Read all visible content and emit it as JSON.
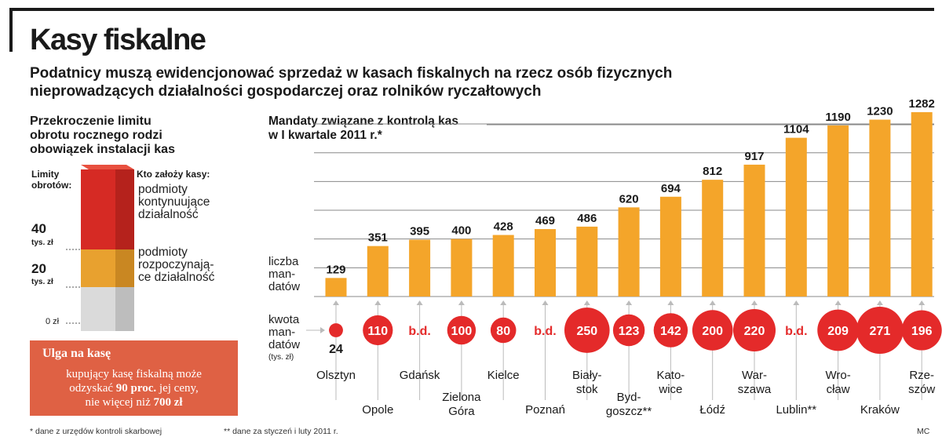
{
  "header": {
    "title": "Kasy fiskalne",
    "subtitle_line1": "Podatnicy muszą ewidencjonować sprzedaż w kasach fiskalnych na rzecz osób fizycznych",
    "subtitle_line2": "nieprowadzących działalności gospodarczej oraz rolników ryczałtowych"
  },
  "left": {
    "heading_line1": "Przekroczenie limitu",
    "heading_line2": "obrotu rocznego rodzi",
    "heading_line3": "obowiązek instalacji kas",
    "limits_label_line1": "Limity",
    "limits_label_line2": "obrotów:",
    "who_label": "Kto założy kasy:",
    "tick_40": "40",
    "tick_40_unit": "tys. zł",
    "tick_20": "20",
    "tick_20_unit": "tys. zł",
    "tick_0": "0 zł",
    "top_desc_line1": "podmioty",
    "top_desc_line2": "kontynuujące",
    "top_desc_line3": "działalność",
    "mid_desc_line1": "podmioty",
    "mid_desc_line2": "rozpoczynają-",
    "mid_desc_line3": "ce działalność",
    "colors": {
      "top": "#d62a24",
      "mid": "#e8a12f",
      "bottom": "#d6d6d6"
    }
  },
  "relief": {
    "title": "Ulga na kasę",
    "line1": "kupujący kasę fiskalną może",
    "line2_pre": "odzyskać ",
    "line2_bold": "90 proc.",
    "line2_post": " jej ceny,",
    "line3_pre": "nie więcej niż ",
    "line3_bold": "700 zł"
  },
  "footnotes": {
    "note1": "* dane z urzędów kontroli skarbowej",
    "note2": "** dane za styczeń i luty 2011 r.",
    "credit": "MC"
  },
  "chart_data": {
    "type": "bar",
    "title_line1": "Mandaty związane z kontrolą kas",
    "title_line2": "w I kwartale 2011 r.*",
    "series_label_line1": "liczba",
    "series_label_line2": "man-",
    "series_label_line3": "datów",
    "amount_label_line1": "kwota",
    "amount_label_line2": "man-",
    "amount_label_line3": "datów",
    "amount_label_unit": "(tys. zł)",
    "categories": [
      "Olsztyn",
      "Opole",
      "Gdańsk",
      "Zielona Góra",
      "Kielce",
      "Poznań",
      "Białystok",
      "Bydgoszcz**",
      "Katowice",
      "Łódź",
      "Warszawa",
      "Lublin**",
      "Wrocław",
      "Kraków",
      "Rzeszów"
    ],
    "category_display": [
      [
        "Olsztyn"
      ],
      [
        "Opole"
      ],
      [
        "Gdańsk"
      ],
      [
        "Zielona",
        "Góra"
      ],
      [
        "Kielce"
      ],
      [
        "Poznań"
      ],
      [
        "Biały-",
        "stok"
      ],
      [
        "Byd-",
        "goszcz**"
      ],
      [
        "Kato-",
        "wice"
      ],
      [
        "Łódź"
      ],
      [
        "War-",
        "szawa"
      ],
      [
        "Lublin**"
      ],
      [
        "Wro-",
        "cław"
      ],
      [
        "Kraków"
      ],
      [
        "Rze-",
        "szów"
      ]
    ],
    "values": [
      129,
      351,
      395,
      400,
      428,
      469,
      486,
      620,
      694,
      812,
      917,
      1104,
      1190,
      1230,
      1282
    ],
    "amounts": [
      "24",
      "110",
      "b.d.",
      "100",
      "80",
      "b.d.",
      "250",
      "123",
      "142",
      "200",
      "220",
      "b.d.",
      "209",
      "271",
      "196"
    ],
    "ylim": [
      0,
      1300
    ],
    "bar_color": "#f4a52a",
    "circle_color": "#e42a2a",
    "grid": true
  }
}
